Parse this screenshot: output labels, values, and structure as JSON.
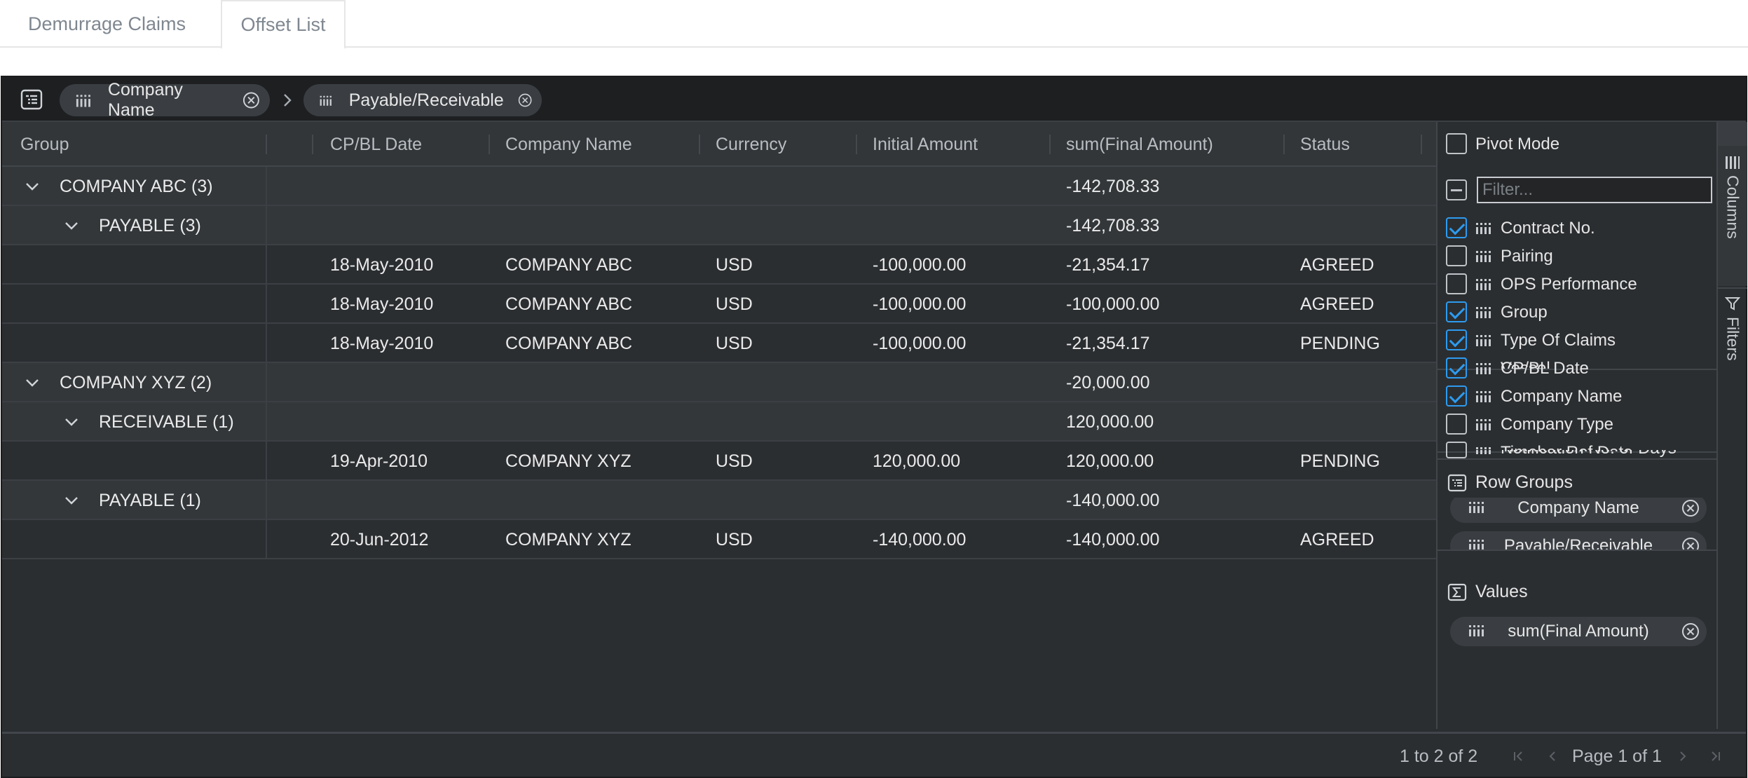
{
  "tabs": [
    {
      "label": "Demurrage Claims"
    },
    {
      "label": "Offset List"
    }
  ],
  "group_panel": {
    "chips": [
      {
        "label": "Company Name"
      },
      {
        "label": "Payable/Receivable"
      }
    ]
  },
  "header": {
    "columns": [
      "Group",
      "CP/BL Date",
      "Company Name",
      "Currency",
      "Initial Amount",
      "sum(Final Amount)",
      "Status"
    ]
  },
  "rows": [
    {
      "type": "group",
      "level": 0,
      "group": "COMPANY ABC (3)",
      "final": "-142,708.33"
    },
    {
      "type": "group",
      "level": 1,
      "group": "PAYABLE (3)",
      "final": "-142,708.33"
    },
    {
      "type": "leaf",
      "date": "18-May-2010",
      "company": "COMPANY ABC",
      "currency": "USD",
      "initial": "-100,000.00",
      "final": "-21,354.17",
      "status": "AGREED"
    },
    {
      "type": "leaf",
      "date": "18-May-2010",
      "company": "COMPANY ABC",
      "currency": "USD",
      "initial": "-100,000.00",
      "final": "-100,000.00",
      "status": "AGREED"
    },
    {
      "type": "leaf",
      "date": "18-May-2010",
      "company": "COMPANY ABC",
      "currency": "USD",
      "initial": "-100,000.00",
      "final": "-21,354.17",
      "status": "PENDING"
    },
    {
      "type": "group",
      "level": 0,
      "group": "COMPANY XYZ (2)",
      "final": "-20,000.00"
    },
    {
      "type": "group",
      "level": 1,
      "group": "RECEIVABLE (1)",
      "final": "120,000.00"
    },
    {
      "type": "leaf",
      "date": "19-Apr-2010",
      "company": "COMPANY XYZ",
      "currency": "USD",
      "initial": "120,000.00",
      "final": "120,000.00",
      "status": "PENDING"
    },
    {
      "type": "group",
      "level": 1,
      "group": "PAYABLE (1)",
      "final": "-140,000.00"
    },
    {
      "type": "leaf",
      "date": "20-Jun-2012",
      "company": "COMPANY XYZ",
      "currency": "USD",
      "initial": "-140,000.00",
      "final": "-140,000.00",
      "status": "AGREED"
    }
  ],
  "side_panel": {
    "pivot_mode_label": "Pivot Mode",
    "filter_placeholder": "Filter...",
    "columns": [
      {
        "label": "Contract No.",
        "checked": true
      },
      {
        "label": "Pairing",
        "checked": false
      },
      {
        "label": "OPS Performance",
        "checked": false
      },
      {
        "label": "Group",
        "checked": true
      },
      {
        "label": "Type Of Claims",
        "checked": true
      },
      {
        "label": "Vessel",
        "checked": true
      },
      {
        "label": "CP/BL Date",
        "checked": true
      },
      {
        "label": "Company Name",
        "checked": true
      },
      {
        "label": "Company Type",
        "checked": false
      },
      {
        "label": "Timebar Ref Date",
        "checked": false
      },
      {
        "label": "Notification No. of Days",
        "checked": false
      }
    ],
    "row_groups_title": "Row Groups",
    "row_groups": [
      "Company Name",
      "Payable/Receivable"
    ],
    "values_title": "Values",
    "values": [
      "sum(Final Amount)"
    ],
    "tabs": [
      "Columns",
      "Filters"
    ]
  },
  "footer": {
    "row_summary": "1 to 2 of 2",
    "page_label": "Page 1 of 1"
  }
}
